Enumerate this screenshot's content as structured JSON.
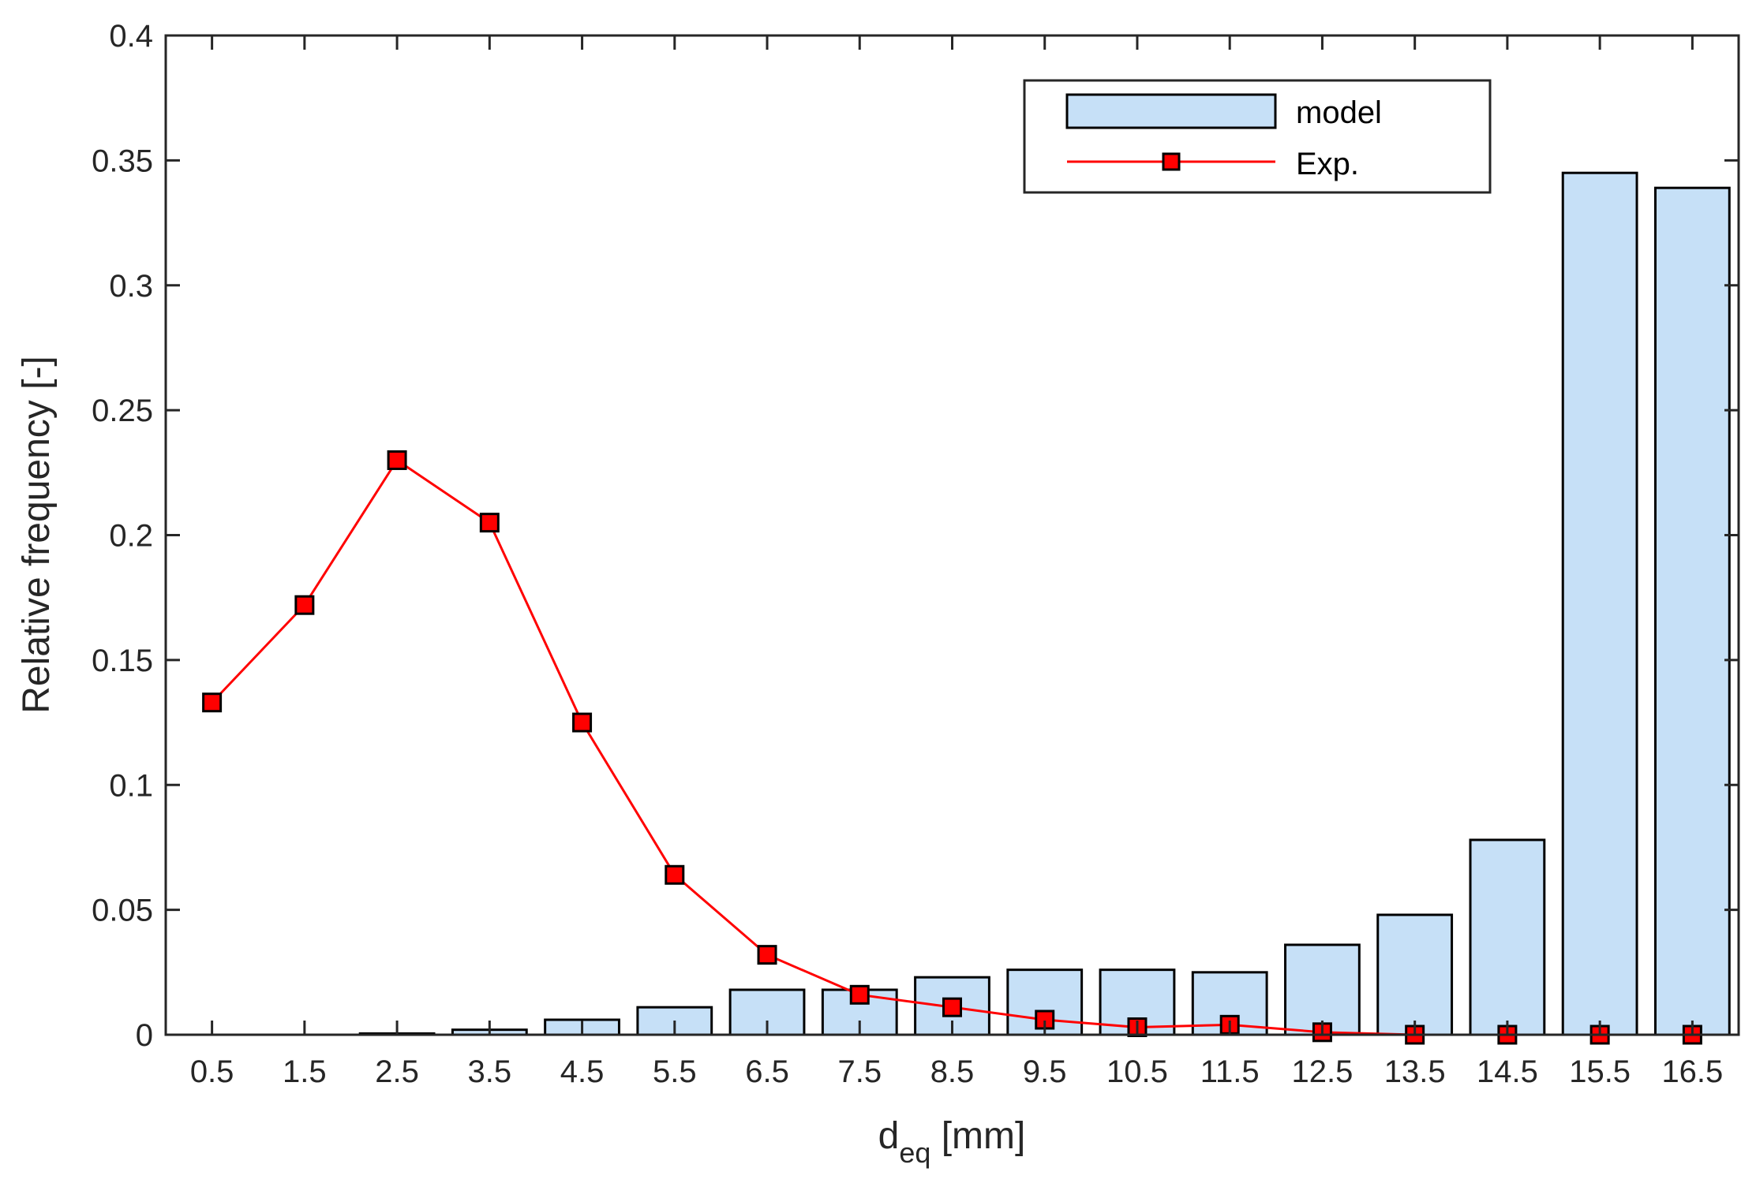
{
  "chart_data": {
    "type": "bar",
    "categories": [
      "0.5",
      "1.5",
      "2.5",
      "3.5",
      "4.5",
      "5.5",
      "6.5",
      "7.5",
      "8.5",
      "9.5",
      "10.5",
      "11.5",
      "12.5",
      "13.5",
      "14.5",
      "15.5",
      "16.5"
    ],
    "x": [
      0.5,
      1.5,
      2.5,
      3.5,
      4.5,
      5.5,
      6.5,
      7.5,
      8.5,
      9.5,
      10.5,
      11.5,
      12.5,
      13.5,
      14.5,
      15.5,
      16.5
    ],
    "series": [
      {
        "name": "model",
        "kind": "bar",
        "values": [
          0,
          0,
          0.0005,
          0.002,
          0.006,
          0.011,
          0.018,
          0.018,
          0.023,
          0.026,
          0.026,
          0.025,
          0.036,
          0.048,
          0.078,
          0.345,
          0.339
        ]
      },
      {
        "name": "Exp.",
        "kind": "line",
        "values": [
          0.133,
          0.172,
          0.23,
          0.205,
          0.125,
          0.064,
          0.032,
          0.016,
          0.011,
          0.006,
          0.003,
          0.004,
          0.001,
          0.0,
          0.0,
          0.0,
          0.0
        ]
      }
    ],
    "xlabel_main": "d",
    "xlabel_sub": "eq",
    "xlabel_unit": " [mm]",
    "ylabel": "Relative frequency [-]",
    "ylim": [
      0,
      0.4
    ],
    "yticks": [
      "0",
      "0.05",
      "0.1",
      "0.15",
      "0.2",
      "0.25",
      "0.3",
      "0.35",
      "0.4"
    ],
    "legend": "top-right",
    "grid": false,
    "colors": {
      "bar_fill": "#c6e0f7",
      "bar_edge": "#000000",
      "line": "#ff0000",
      "marker_fill": "#ff0000",
      "marker_edge": "#000000"
    }
  }
}
